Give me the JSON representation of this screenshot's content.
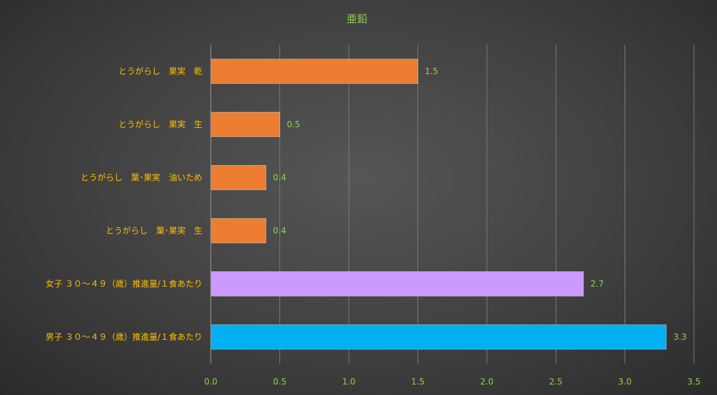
{
  "chart_data": {
    "type": "bar",
    "orientation": "horizontal",
    "title": "亜鉛",
    "xlabel": "",
    "ylabel": "",
    "xlim": [
      0,
      3.5
    ],
    "ticks": [
      "0.0",
      "0.5",
      "1.0",
      "1.5",
      "2.0",
      "2.5",
      "3.0",
      "3.5"
    ],
    "tick_values": [
      0,
      0.5,
      1.0,
      1.5,
      2.0,
      2.5,
      3.0,
      3.5
    ],
    "grid": true,
    "categories": [
      "とうがらし　果実　乾",
      "とうがらし　果実　生",
      "とうがらし　葉･果実　油いため",
      "とうがらし　葉･果実　生",
      "女子 ３０～４９（歳）推進量/１食あたり",
      "男子 ３０～４９（歳）推進量/１食あたり"
    ],
    "values": [
      1.5,
      0.5,
      0.4,
      0.4,
      2.7,
      3.3
    ],
    "value_labels": [
      "1.5",
      "0.5",
      "0.4",
      "0.4",
      "2.7",
      "3.3"
    ],
    "bar_colors": [
      "#ED7D31",
      "#ED7D31",
      "#ED7D31",
      "#ED7D31",
      "#CC99FF",
      "#00B0F0"
    ]
  },
  "colors": {
    "title": "#92D050",
    "category_label": "#FFC000",
    "tick_label": "#92D050",
    "data_label": "#92D050",
    "gridline": "#7a7a7a",
    "axis": "#9a9a9a"
  }
}
